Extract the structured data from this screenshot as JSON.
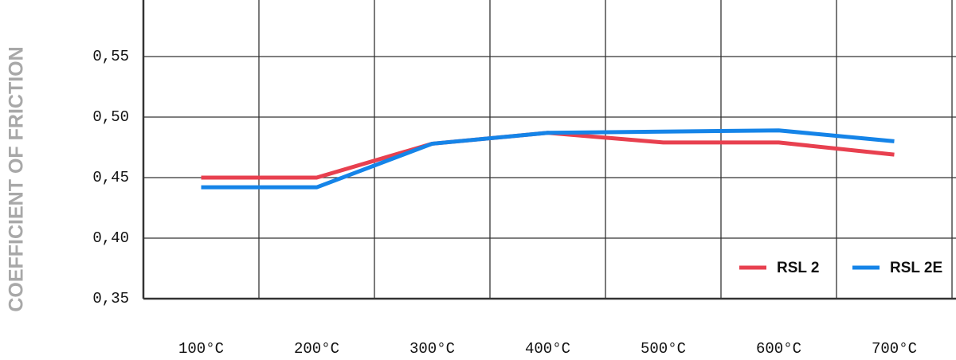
{
  "chart_data": {
    "type": "line",
    "y_label": "COEFFICIENT OF FRICTION",
    "categories": [
      "100°C",
      "200°C",
      "300°C",
      "400°C",
      "500°C",
      "600°C",
      "700°C"
    ],
    "series": [
      {
        "name": "RSL 2",
        "color": "#e8404f",
        "values": [
          0.45,
          0.45,
          0.478,
          0.487,
          0.479,
          0.479,
          0.469
        ]
      },
      {
        "name": "RSL 2E",
        "color": "#1584e8",
        "values": [
          0.442,
          0.442,
          0.478,
          0.487,
          0.488,
          0.489,
          0.48
        ]
      }
    ],
    "ylim": [
      0.35,
      0.6
    ],
    "yticks": [
      {
        "value": 0.35,
        "label": "0,35"
      },
      {
        "value": 0.4,
        "label": "0,40"
      },
      {
        "value": 0.45,
        "label": "0,45"
      },
      {
        "value": 0.5,
        "label": "0,50"
      },
      {
        "value": 0.55,
        "label": "0,55"
      }
    ],
    "grid": true,
    "legend": "bottom-right"
  }
}
